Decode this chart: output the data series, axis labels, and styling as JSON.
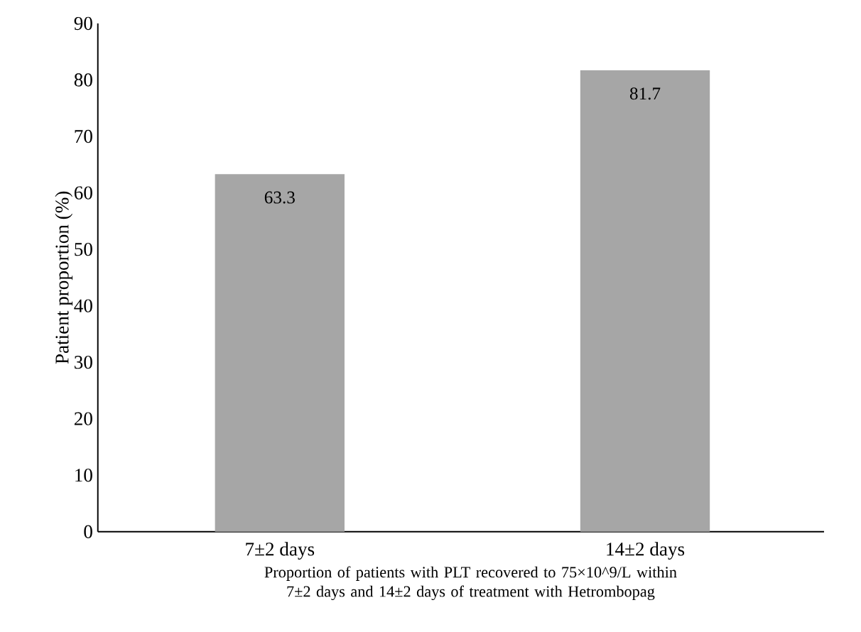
{
  "chart_data": {
    "type": "bar",
    "categories": [
      "7±2 days",
      "14±2 days"
    ],
    "values": [
      63.3,
      81.7
    ],
    "color": "#a6a6a6",
    "ylabel": "Patient proportion (%)",
    "xlabel": "Proportion of patients with PLT recovered to 75×10^9/L within 7±2 days and 14±2 days of treatment with Hetrombopag",
    "ylim": [
      0,
      90
    ],
    "yticks": [
      0,
      10,
      20,
      30,
      40,
      50,
      60,
      70,
      80,
      90
    ],
    "data_labels": true,
    "grid": false
  }
}
